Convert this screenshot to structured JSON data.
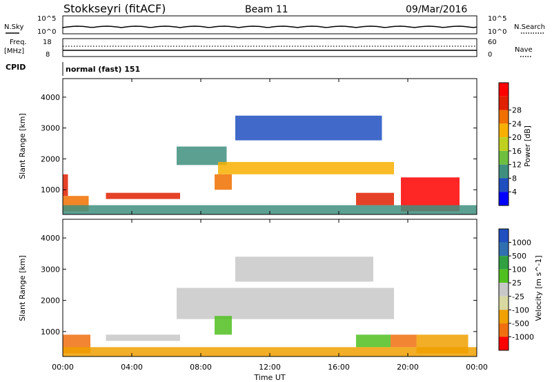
{
  "header": {
    "station": "Stokkseyri (fitACF)",
    "beam": "Beam 11",
    "date": "09/Mar/2016"
  },
  "strip_labels": {
    "nsky": "N.Sky",
    "nsky_top": "10^5",
    "nsky_bottom": "10^0",
    "nsearch": "N.Search",
    "nsearch_top": "10^5",
    "nsearch_bottom": "10^0",
    "freq_line1": "Freq.",
    "freq_line2": "[MHz]",
    "freq_top": "18",
    "freq_bottom": "8",
    "nave": "Nave",
    "nave_top": "60",
    "nave_bottom": "0",
    "cpid": "CPID",
    "cpid_value": "normal (fast) 151"
  },
  "colors": {
    "power_scale": [
      "#0000ff",
      "#1f4fbf",
      "#3f8f7f",
      "#6fbf3f",
      "#c0d020",
      "#f8b000",
      "#f07000",
      "#e02000",
      "#ff0000"
    ],
    "velocity_scale": [
      "#2050c0",
      "#3070b0",
      "#30a040",
      "#50c020",
      "#c8c8c8",
      "#d8d8a0",
      "#f0a000",
      "#f07010",
      "#ff0000"
    ]
  },
  "chart_data": [
    {
      "type": "heatmap",
      "name": "power",
      "ylabel": "Slant Range [km]",
      "yticks": [
        "1000",
        "2000",
        "3000",
        "4000"
      ],
      "ylim": [
        200,
        4600
      ],
      "xlim": [
        0,
        24
      ],
      "colorbar_label": "Power [dB]",
      "colorbar_ticks": [
        "4",
        "8",
        "12",
        "16",
        "20",
        "24",
        "28"
      ],
      "patches": [
        {
          "t0": 0.0,
          "t1": 1.5,
          "r0": 300,
          "r1": 800,
          "c": 6
        },
        {
          "t0": 0.0,
          "t1": 0.3,
          "r0": 800,
          "r1": 1500,
          "c": 7
        },
        {
          "t0": 2.5,
          "t1": 6.8,
          "r0": 700,
          "r1": 900,
          "c": 7
        },
        {
          "t0": 6.6,
          "t1": 9.5,
          "r0": 1800,
          "r1": 2400,
          "c": 2
        },
        {
          "t0": 9.0,
          "t1": 19.2,
          "r0": 1500,
          "r1": 1900,
          "c": 5
        },
        {
          "t0": 8.8,
          "t1": 9.8,
          "r0": 1000,
          "r1": 1500,
          "c": 6
        },
        {
          "t0": 10.0,
          "t1": 18.5,
          "r0": 2600,
          "r1": 3400,
          "c": 1
        },
        {
          "t0": 17.0,
          "t1": 19.2,
          "r0": 500,
          "r1": 900,
          "c": 7
        },
        {
          "t0": 19.6,
          "t1": 23.0,
          "r0": 300,
          "r1": 1400,
          "c": 8
        },
        {
          "t0": 0.0,
          "t1": 24.0,
          "r0": 200,
          "r1": 500,
          "c": 2
        }
      ]
    },
    {
      "type": "heatmap",
      "name": "velocity",
      "ylabel": "Slant Range [km]",
      "yticks": [
        "1000",
        "2000",
        "3000",
        "4000"
      ],
      "ylim": [
        200,
        4600
      ],
      "xlim": [
        0,
        24
      ],
      "xlabel": "Time UT",
      "xticks": [
        "00:00",
        "04:00",
        "08:00",
        "12:00",
        "16:00",
        "20:00",
        "00:00"
      ],
      "colorbar_label": "Velocity [m s^-1]",
      "colorbar_ticks": [
        "1000",
        "500",
        "100",
        "25",
        "-25",
        "-100",
        "-500",
        "-1000"
      ],
      "patches": [
        {
          "t0": 0.0,
          "t1": 1.6,
          "r0": 300,
          "r1": 900,
          "c": 7
        },
        {
          "t0": 2.5,
          "t1": 6.8,
          "r0": 700,
          "r1": 900,
          "c": 4
        },
        {
          "t0": 6.6,
          "t1": 19.2,
          "r0": 1400,
          "r1": 2400,
          "c": 4
        },
        {
          "t0": 8.8,
          "t1": 9.8,
          "r0": 900,
          "r1": 1500,
          "c": 3
        },
        {
          "t0": 17.0,
          "t1": 19.0,
          "r0": 500,
          "r1": 900,
          "c": 3
        },
        {
          "t0": 19.0,
          "t1": 20.5,
          "r0": 500,
          "r1": 900,
          "c": 7
        },
        {
          "t0": 20.5,
          "t1": 23.5,
          "r0": 300,
          "r1": 900,
          "c": 6
        },
        {
          "t0": 10.0,
          "t1": 18.0,
          "r0": 2600,
          "r1": 3400,
          "c": 4
        },
        {
          "t0": 0.0,
          "t1": 24.0,
          "r0": 200,
          "r1": 500,
          "c": 6
        }
      ]
    }
  ]
}
